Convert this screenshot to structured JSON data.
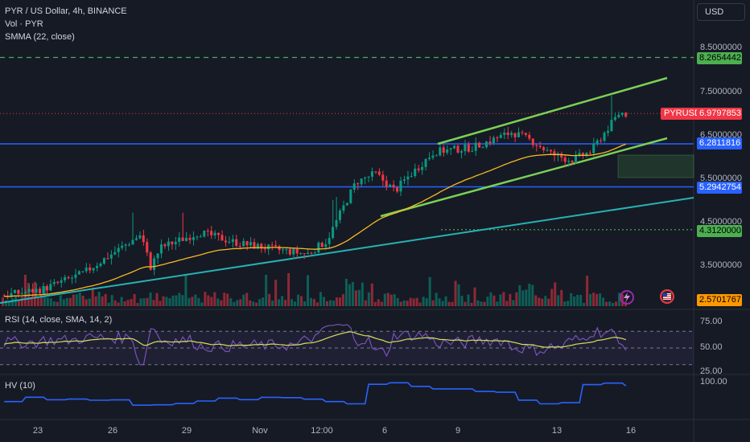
{
  "header": {
    "symbol_line": "PYR / US Dollar, 4h, BINANCE",
    "vol_label": "Vol · PYR",
    "smma_label": "SMMA (22, close)",
    "currency": "USD"
  },
  "price_axis": {
    "labels": [
      "8.5000000",
      "7.5000000",
      "6.5000000",
      "5.5000000",
      "4.5000000",
      "3.5000000"
    ],
    "values": [
      8.5,
      7.5,
      6.5,
      5.5,
      4.5,
      3.5
    ]
  },
  "price_tags": {
    "green_top": "8.2654442",
    "last": "6.9797853",
    "blue_upper": "6.2811816",
    "blue_lower": "5.2942754",
    "green_mid": "4.3120000",
    "bottom": "2.5701767",
    "symbol": "PYRUSD"
  },
  "x_axis": [
    "23",
    "26",
    "29",
    "Nov",
    "12:00",
    "6",
    "9",
    "13",
    "16"
  ],
  "rsi": {
    "label": "RSI (14, close, SMA, 14, 2)",
    "axis_labels": [
      "75.00",
      "50.00",
      "25.00"
    ],
    "values": [
      75,
      50,
      25
    ]
  },
  "hv": {
    "label": "HV (10)",
    "axis_labels": [
      "100.00"
    ]
  },
  "colors": {
    "background": "#161a25",
    "up": "#089981",
    "down": "#f23645",
    "smma": "#f7b924",
    "channel": "#7bd155",
    "support_blue": "#2962ff",
    "trendline_teal": "#26b3b3",
    "dashed_green": "#4caf50",
    "rsi_line": "#7e57c2",
    "hv_line": "#2962ff"
  },
  "icons": [
    "lightning-icon",
    "us-flag-icon"
  ]
}
